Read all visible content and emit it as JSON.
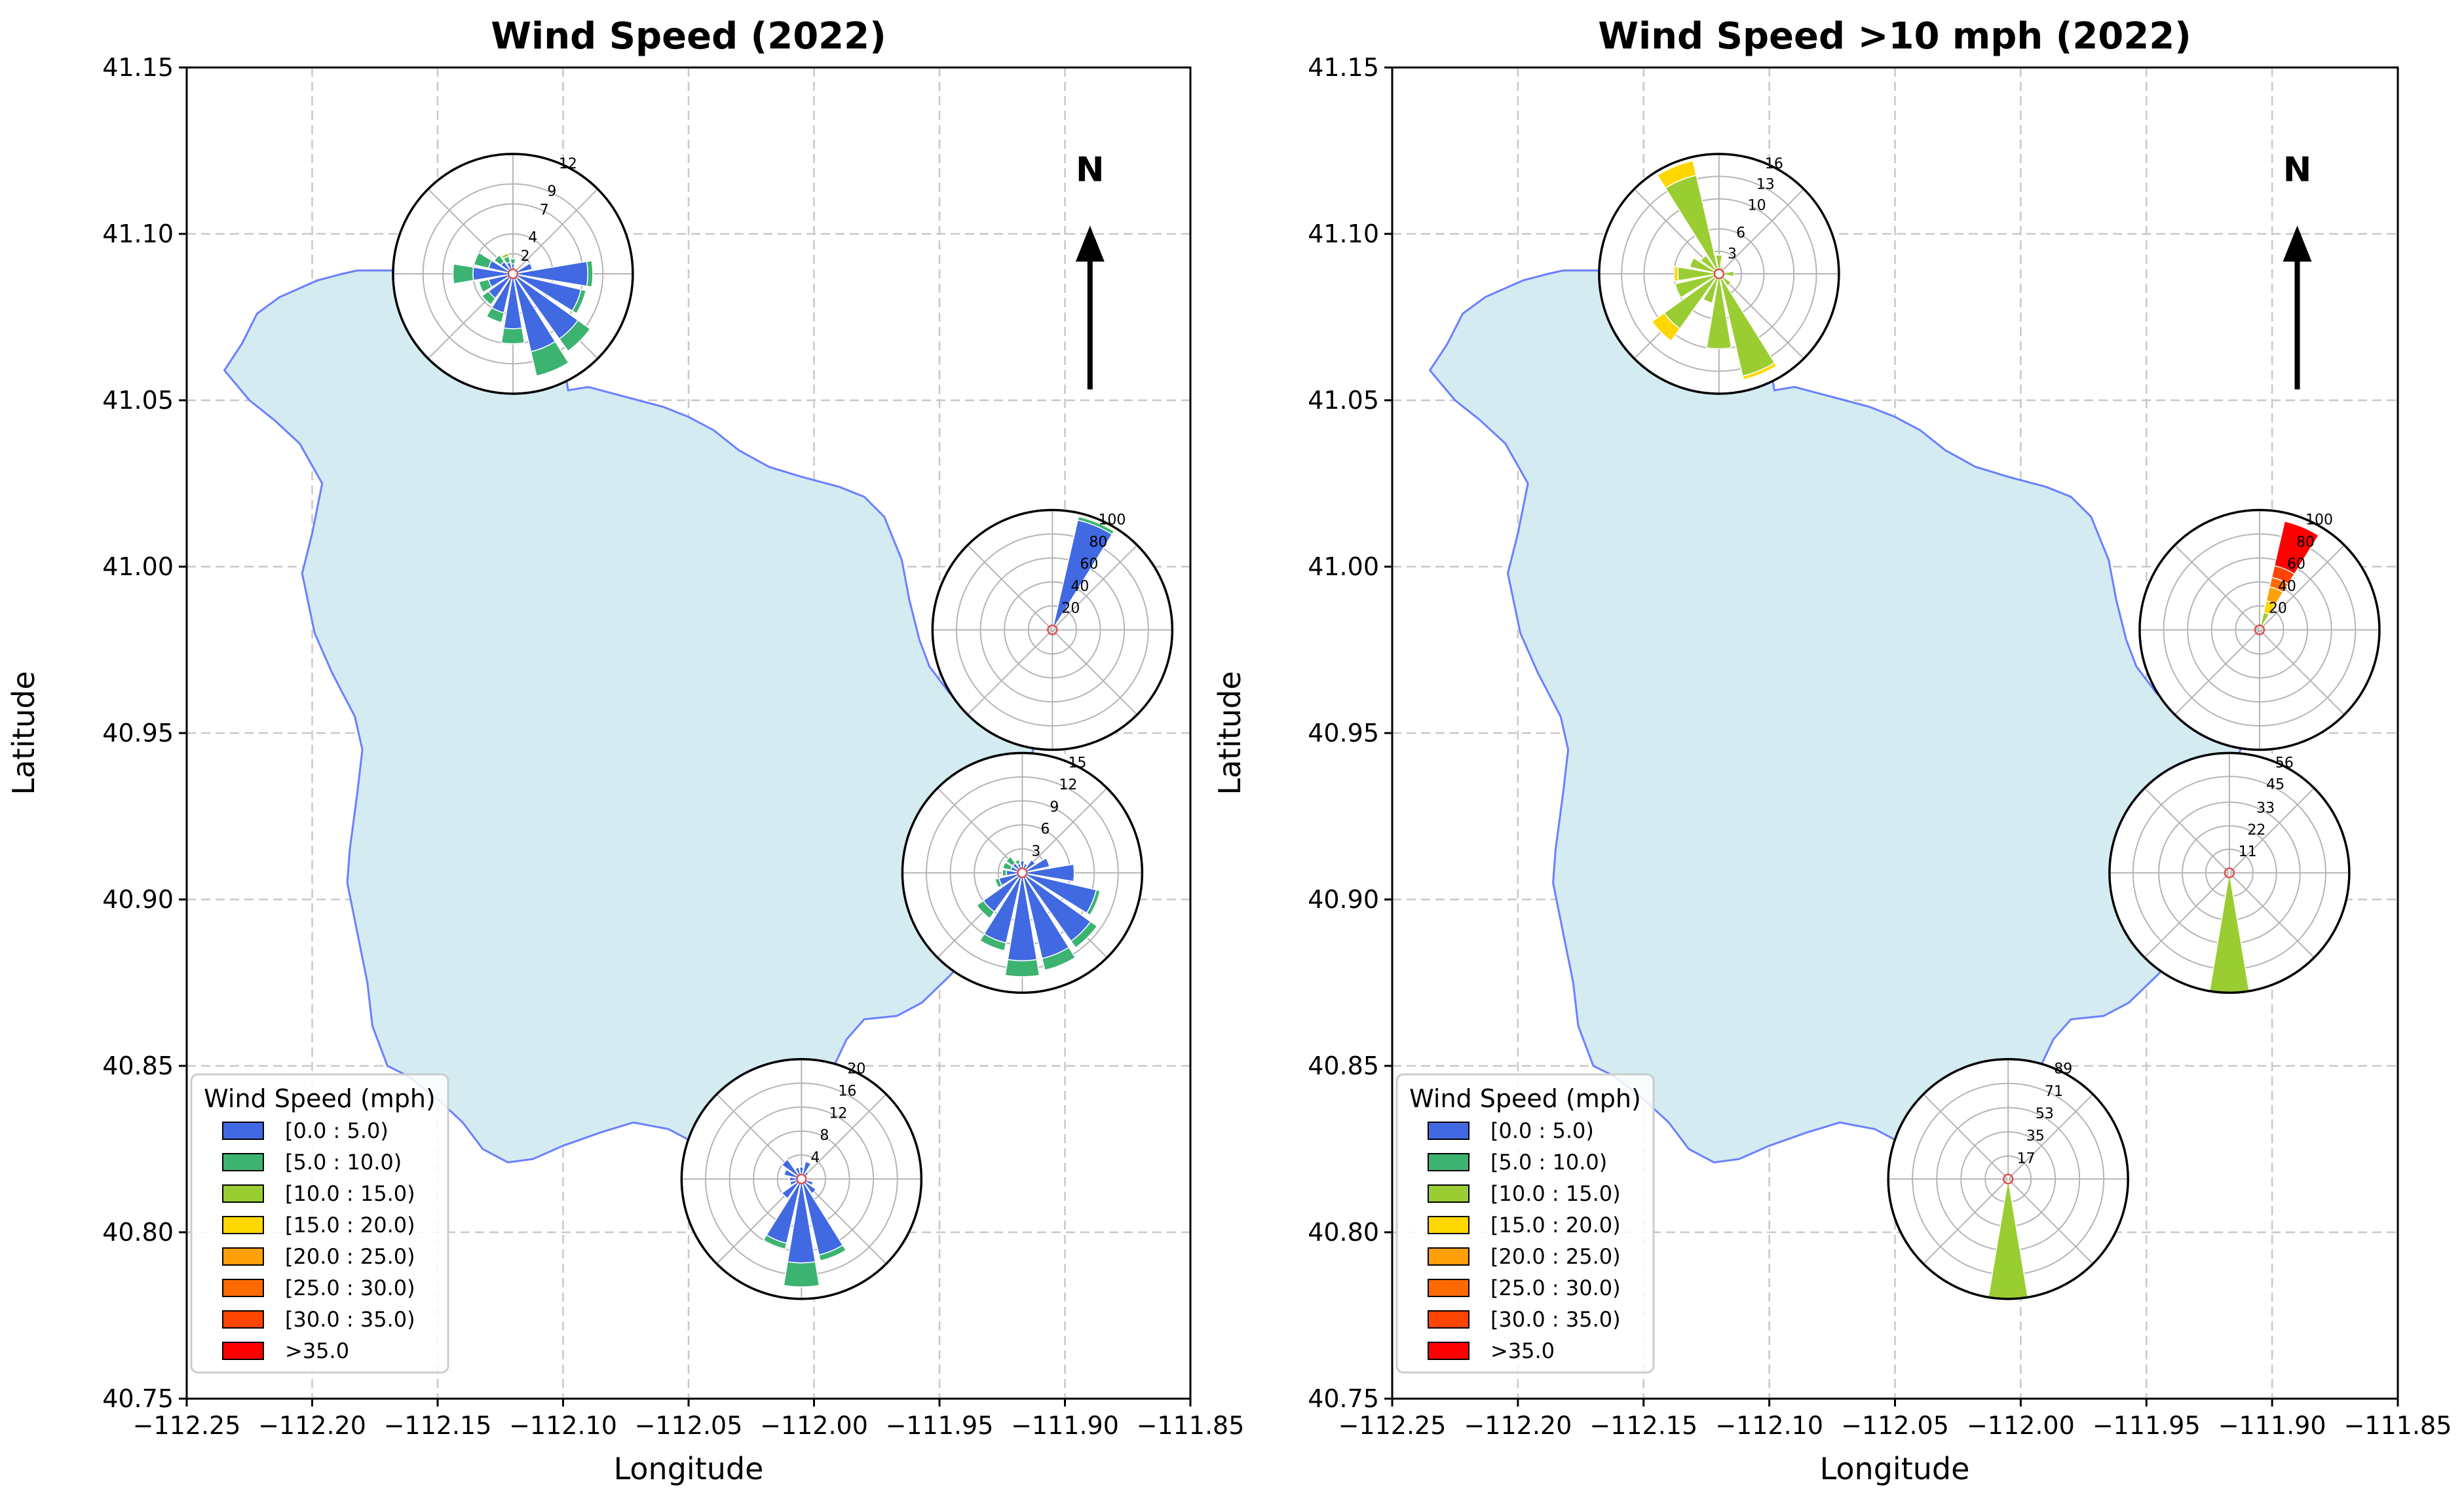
{
  "chart_data": [
    {
      "type": "map-windrose",
      "title": "Wind Speed (2022)",
      "xlabel": "Longitude",
      "ylabel": "Latitude",
      "xlim": [
        -112.25,
        -111.85
      ],
      "ylim": [
        40.75,
        41.15
      ],
      "xticks": [
        -112.25,
        -112.2,
        -112.15,
        -112.1,
        -112.05,
        -112.0,
        -111.95,
        -111.9,
        -111.85
      ],
      "xtick_labels": [
        "−112.25",
        "−112.20",
        "−112.15",
        "−112.10",
        "−112.05",
        "−112.00",
        "−111.95",
        "−111.90",
        "−111.85"
      ],
      "yticks": [
        40.75,
        40.8,
        40.85,
        40.9,
        40.95,
        41.0,
        41.05,
        41.1,
        41.15
      ],
      "ytick_labels": [
        "40.75",
        "40.80",
        "40.85",
        "40.90",
        "40.95",
        "41.00",
        "41.05",
        "41.10",
        "41.15"
      ],
      "grid": true,
      "north_arrow": {
        "label": "N",
        "lon": -111.89,
        "lat": 41.07
      },
      "legend": {
        "title": "Wind Speed (mph)",
        "placement": "lower-left",
        "entries": [
          "[0.0 : 5.0)",
          "[5.0 : 10.0)",
          "[10.0 : 15.0)",
          "[15.0 : 20.0)",
          "[20.0 : 25.0)",
          "[25.0 : 30.0)",
          "[30.0 : 35.0)",
          ">35.0"
        ]
      },
      "roses": [
        {
          "lon": -112.12,
          "lat": 41.088,
          "rmax": 12,
          "rings": [
            2,
            4,
            7,
            9,
            12
          ],
          "petals": [
            {
              "dir": 270,
              "segs": [
                [
                  0,
                  4
                ],
                [
                  1,
                  2
                ]
              ]
            },
            {
              "dir": 292.5,
              "segs": [
                [
                  0,
                  2.5
                ],
                [
                  1,
                  1.5
                ]
              ]
            },
            {
              "dir": 315,
              "segs": [
                [
                  0,
                  1.5
                ],
                [
                  1,
                  0.8
                ]
              ]
            },
            {
              "dir": 337.5,
              "segs": [
                [
                  0,
                  1.2
                ],
                [
                  1,
                  0.6
                ],
                [
                  2,
                  0.3
                ]
              ]
            },
            {
              "dir": 0,
              "segs": [
                [
                  0,
                  1.0
                ],
                [
                  1,
                  0.5
                ]
              ]
            },
            {
              "dir": 67.5,
              "segs": [
                [
                  0,
                  2
                ]
              ]
            },
            {
              "dir": 90,
              "segs": [
                [
                  0,
                  7.5
                ],
                [
                  1,
                  0.5
                ]
              ]
            },
            {
              "dir": 112.5,
              "segs": [
                [
                  0,
                  7
                ],
                [
                  1,
                  0.5
                ]
              ]
            },
            {
              "dir": 135,
              "segs": [
                [
                  0,
                  8
                ],
                [
                  1,
                  1.5
                ]
              ]
            },
            {
              "dir": 157.5,
              "segs": [
                [
                  0,
                  8
                ],
                [
                  1,
                  2.5
                ]
              ]
            },
            {
              "dir": 180,
              "segs": [
                [
                  0,
                  5.5
                ],
                [
                  1,
                  1.5
                ]
              ]
            },
            {
              "dir": 202.5,
              "segs": [
                [
                  0,
                  4
                ],
                [
                  1,
                  1
                ]
              ]
            },
            {
              "dir": 225,
              "segs": [
                [
                  0,
                  3
                ],
                [
                  1,
                  0.8
                ]
              ]
            },
            {
              "dir": 247.5,
              "segs": [
                [
                  0,
                  2.5
                ],
                [
                  1,
                  1
                ]
              ]
            }
          ]
        },
        {
          "lon": -111.905,
          "lat": 40.981,
          "rmax": 100,
          "rings": [
            20,
            40,
            60,
            80,
            100
          ],
          "petals": [
            {
              "dir": 22.5,
              "segs": [
                [
                  0,
                  94
                ],
                [
                  1,
                  3
                ],
                [
                  2,
                  1
                ]
              ]
            }
          ]
        },
        {
          "lon": -111.917,
          "lat": 40.908,
          "rmax": 15,
          "rings": [
            3,
            6,
            9,
            12,
            15
          ],
          "petals": [
            {
              "dir": 0,
              "segs": [
                [
                  0,
                  1.5
                ]
              ]
            },
            {
              "dir": 22.5,
              "segs": [
                [
                  0,
                  1.2
                ]
              ]
            },
            {
              "dir": 45,
              "segs": [
                [
                  0,
                  2
                ]
              ]
            },
            {
              "dir": 67.5,
              "segs": [
                [
                  0,
                  3.5
                ]
              ]
            },
            {
              "dir": 90,
              "segs": [
                [
                  0,
                  6.5
                ]
              ]
            },
            {
              "dir": 112.5,
              "segs": [
                [
                  0,
                  9.5
                ],
                [
                  1,
                  0.5
                ]
              ]
            },
            {
              "dir": 135,
              "segs": [
                [
                  0,
                  10.5
                ],
                [
                  1,
                  1
                ]
              ]
            },
            {
              "dir": 157.5,
              "segs": [
                [
                  0,
                  11
                ],
                [
                  1,
                  1.5
                ]
              ]
            },
            {
              "dir": 180,
              "segs": [
                [
                  0,
                  11
                ],
                [
                  1,
                  2
                ]
              ]
            },
            {
              "dir": 202.5,
              "segs": [
                [
                  0,
                  9
                ],
                [
                  1,
                  1
                ]
              ]
            },
            {
              "dir": 225,
              "segs": [
                [
                  0,
                  6
                ],
                [
                  1,
                  1
                ]
              ]
            },
            {
              "dir": 247.5,
              "segs": [
                [
                  0,
                  3
                ],
                [
                  1,
                  0.5
                ]
              ]
            },
            {
              "dir": 270,
              "segs": [
                [
                  0,
                  2
                ],
                [
                  1,
                  0.5
                ]
              ]
            },
            {
              "dir": 292.5,
              "segs": [
                [
                  0,
                  1.5
                ],
                [
                  1,
                  1
                ]
              ]
            },
            {
              "dir": 315,
              "segs": [
                [
                  0,
                  1.5
                ],
                [
                  1,
                  1
                ]
              ]
            },
            {
              "dir": 337.5,
              "segs": [
                [
                  0,
                  1.2
                ],
                [
                  1,
                  0.5
                ]
              ]
            }
          ]
        },
        {
          "lon": -112.005,
          "lat": 40.816,
          "rmax": 20,
          "rings": [
            4,
            8,
            12,
            16,
            20
          ],
          "petals": [
            {
              "dir": 0,
              "segs": [
                [
                  0,
                  2
                ]
              ]
            },
            {
              "dir": 22.5,
              "segs": [
                [
                  0,
                  3
                ]
              ]
            },
            {
              "dir": 45,
              "segs": [
                [
                  0,
                  1.5
                ]
              ]
            },
            {
              "dir": 67.5,
              "segs": [
                [
                  0,
                  1
                ]
              ]
            },
            {
              "dir": 90,
              "segs": [
                [
                  0,
                  1
                ]
              ]
            },
            {
              "dir": 112.5,
              "segs": [
                [
                  0,
                  2
                ]
              ]
            },
            {
              "dir": 135,
              "segs": [
                [
                  0,
                  3
                ]
              ]
            },
            {
              "dir": 157.5,
              "segs": [
                [
                  0,
                  13
                ],
                [
                  1,
                  1
                ]
              ]
            },
            {
              "dir": 180,
              "segs": [
                [
                  0,
                  14
                ],
                [
                  1,
                  4
                ]
              ]
            },
            {
              "dir": 202.5,
              "segs": [
                [
                  0,
                  11
                ],
                [
                  1,
                  1
                ]
              ]
            },
            {
              "dir": 225,
              "segs": [
                [
                  0,
                  4
                ]
              ]
            },
            {
              "dir": 247.5,
              "segs": [
                [
                  0,
                  2
                ]
              ]
            },
            {
              "dir": 270,
              "segs": [
                [
                  0,
                  2
                ]
              ]
            },
            {
              "dir": 292.5,
              "segs": [
                [
                  0,
                  3
                ]
              ]
            },
            {
              "dir": 315,
              "segs": [
                [
                  0,
                  4
                ]
              ]
            },
            {
              "dir": 337.5,
              "segs": [
                [
                  0,
                  2
                ]
              ]
            }
          ]
        }
      ]
    },
    {
      "type": "map-windrose",
      "title": "Wind Speed >10 mph (2022)",
      "xlabel": "Longitude",
      "ylabel": "Latitude",
      "xlim": [
        -112.25,
        -111.85
      ],
      "ylim": [
        40.75,
        41.15
      ],
      "xticks": [
        -112.25,
        -112.2,
        -112.15,
        -112.1,
        -112.05,
        -112.0,
        -111.95,
        -111.9,
        -111.85
      ],
      "xtick_labels": [
        "−112.25",
        "−112.20",
        "−112.15",
        "−112.10",
        "−112.05",
        "−112.00",
        "−111.95",
        "−111.90",
        "−111.85"
      ],
      "yticks": [
        40.75,
        40.8,
        40.85,
        40.9,
        40.95,
        41.0,
        41.05,
        41.1,
        41.15
      ],
      "ytick_labels": [
        "40.75",
        "40.80",
        "40.85",
        "40.90",
        "40.95",
        "41.00",
        "41.05",
        "41.10",
        "41.15"
      ],
      "grid": true,
      "north_arrow": {
        "label": "N",
        "lon": -111.89,
        "lat": 41.07
      },
      "legend": {
        "title": "Wind Speed (mph)",
        "placement": "lower-left",
        "entries": [
          "[0.0 : 5.0)",
          "[5.0 : 10.0)",
          "[10.0 : 15.0)",
          "[15.0 : 20.0)",
          "[20.0 : 25.0)",
          "[25.0 : 30.0)",
          "[30.0 : 35.0)",
          ">35.0"
        ]
      },
      "roses": [
        {
          "lon": -112.12,
          "lat": 41.088,
          "rmax": 16,
          "rings": [
            3,
            6,
            10,
            13,
            16
          ],
          "petals": [
            {
              "dir": 337.5,
              "segs": [
                [
                  2,
                  13.5
                ],
                [
                  3,
                  2
                ]
              ]
            },
            {
              "dir": 315,
              "segs": [
                [
                  2,
                  3
                ]
              ]
            },
            {
              "dir": 292.5,
              "segs": [
                [
                  2,
                  4
                ]
              ]
            },
            {
              "dir": 270,
              "segs": [
                [
                  2,
                  5.5
                ],
                [
                  3,
                  0.5
                ]
              ]
            },
            {
              "dir": 247.5,
              "segs": [
                [
                  2,
                  6
                ]
              ]
            },
            {
              "dir": 225,
              "segs": [
                [
                  2,
                  9
                ],
                [
                  3,
                  2
                ]
              ]
            },
            {
              "dir": 202.5,
              "segs": [
                [
                  2,
                  4
                ]
              ]
            },
            {
              "dir": 180,
              "segs": [
                [
                  2,
                  10
                ]
              ]
            },
            {
              "dir": 157.5,
              "segs": [
                [
                  2,
                  14
                ],
                [
                  3,
                  0.5
                ]
              ]
            },
            {
              "dir": 135,
              "segs": [
                [
                  2,
                  2
                ]
              ]
            },
            {
              "dir": 90,
              "segs": [
                [
                  2,
                  2
                ]
              ]
            },
            {
              "dir": 0,
              "segs": [
                [
                  2,
                  2.5
                ]
              ]
            },
            {
              "dir": 22.5,
              "segs": [
                [
                  2,
                  1
                ]
              ]
            }
          ]
        },
        {
          "lon": -111.905,
          "lat": 40.981,
          "rmax": 100,
          "rings": [
            20,
            40,
            60,
            80,
            100
          ],
          "petals": [
            {
              "dir": 22.5,
              "segs": [
                [
                  2,
                  15
                ],
                [
                  3,
                  10
                ],
                [
                  4,
                  12
                ],
                [
                  5,
                  8
                ],
                [
                  6,
                  10
                ],
                [
                  7,
                  38
                ]
              ]
            }
          ]
        },
        {
          "lon": -111.917,
          "lat": 40.908,
          "rmax": 56,
          "rings": [
            11,
            22,
            33,
            45,
            56
          ],
          "petals": [
            {
              "dir": 180,
              "segs": [
                [
                  2,
                  56
                ]
              ]
            },
            {
              "dir": 0,
              "segs": [
                [
                  2,
                  2
                ]
              ]
            }
          ]
        },
        {
          "lon": -112.005,
          "lat": 40.816,
          "rmax": 89,
          "rings": [
            17,
            35,
            53,
            71,
            89
          ],
          "petals": [
            {
              "dir": 180,
              "segs": [
                [
                  2,
                  89
                ]
              ]
            },
            {
              "dir": 0,
              "segs": [
                [
                  2,
                  3
                ]
              ]
            }
          ]
        }
      ]
    }
  ],
  "colors": {
    "bins": [
      "#4169e1",
      "#3cb371",
      "#9acd32",
      "#ffd700",
      "#ff9f0a",
      "#ff6a00",
      "#ff4500",
      "#ff0000"
    ],
    "lake_fill": "#d4ebf2",
    "lake_outline": "#6a80ff",
    "grid": "#c8c8c8"
  }
}
